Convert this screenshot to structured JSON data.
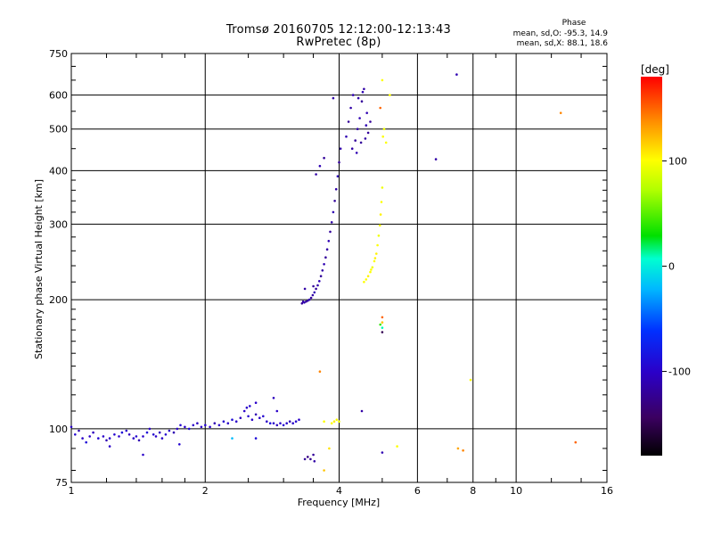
{
  "title_line1": "Tromsø 20160705 12:12:00-12:13:43",
  "title_line2": "RwPretec (8p)",
  "phase_box": {
    "heading": "Phase",
    "line_o": "mean, sd,O: -95.3, 14.9",
    "line_x": "mean, sd,X:  88.1, 18.6"
  },
  "chart_data": {
    "type": "scatter",
    "xlabel": "Frequency [MHz]",
    "ylabel": "Stationary phase Virtual Height [km]",
    "xscale": "log",
    "yscale": "log",
    "xlim": [
      1,
      16
    ],
    "ylim": [
      75,
      750
    ],
    "x_ticks": [
      1,
      2,
      4,
      6,
      8,
      10,
      16
    ],
    "x_tick_labels": [
      "1",
      "2",
      "4",
      "6",
      "8",
      "10",
      "16"
    ],
    "y_ticks": [
      75,
      100,
      200,
      300,
      400,
      500,
      600,
      750
    ],
    "y_tick_labels": [
      "75",
      "100",
      "200",
      "300",
      "400",
      "500",
      "600",
      "750"
    ],
    "grid": true,
    "colorbar": {
      "label": "[deg]",
      "range": [
        -180,
        180
      ],
      "ticks": [
        100,
        0,
        -100
      ],
      "tick_labels": [
        "100",
        "0",
        "-100"
      ]
    },
    "series": [
      {
        "points": [
          [
            1.0,
            101,
            -100
          ],
          [
            1.02,
            97,
            -95
          ],
          [
            1.04,
            99,
            -110
          ],
          [
            1.06,
            95,
            -100
          ],
          [
            1.08,
            93,
            -90
          ],
          [
            1.1,
            96,
            -100
          ],
          [
            1.12,
            98,
            -105
          ],
          [
            1.15,
            95,
            -95
          ],
          [
            1.18,
            96,
            -100
          ],
          [
            1.2,
            94,
            -110
          ],
          [
            1.22,
            95,
            -100
          ],
          [
            1.25,
            97,
            -95
          ],
          [
            1.28,
            96,
            -100
          ],
          [
            1.3,
            98,
            -90
          ],
          [
            1.33,
            99,
            -100
          ],
          [
            1.35,
            97,
            -105
          ],
          [
            1.38,
            95,
            -100
          ],
          [
            1.4,
            96,
            -95
          ],
          [
            1.42,
            94,
            -110
          ],
          [
            1.45,
            96,
            -100
          ],
          [
            1.48,
            98,
            -90
          ],
          [
            1.5,
            100,
            -100
          ],
          [
            1.53,
            97,
            -95
          ],
          [
            1.55,
            96,
            -100
          ],
          [
            1.58,
            98,
            -105
          ],
          [
            1.6,
            95,
            -100
          ],
          [
            1.63,
            97,
            -95
          ],
          [
            1.66,
            99,
            -100
          ],
          [
            1.7,
            98,
            -110
          ],
          [
            1.73,
            100,
            -100
          ],
          [
            1.76,
            102,
            -95
          ],
          [
            1.8,
            101,
            -100
          ],
          [
            1.84,
            100,
            -90
          ],
          [
            1.88,
            102,
            -100
          ],
          [
            1.92,
            103,
            -105
          ],
          [
            1.96,
            101,
            -100
          ],
          [
            2.0,
            102,
            -95
          ],
          [
            2.05,
            101,
            -100
          ],
          [
            2.1,
            103,
            -110
          ],
          [
            2.15,
            102,
            -100
          ],
          [
            2.2,
            104,
            -95
          ],
          [
            2.25,
            103,
            -100
          ],
          [
            2.3,
            105,
            -90
          ],
          [
            2.35,
            104,
            -100
          ],
          [
            2.4,
            106,
            -105
          ],
          [
            2.45,
            110,
            -100
          ],
          [
            2.5,
            107,
            -95
          ],
          [
            2.55,
            105,
            -100
          ],
          [
            2.6,
            108,
            -110
          ],
          [
            2.65,
            106,
            -100
          ],
          [
            2.7,
            107,
            -95
          ],
          [
            2.75,
            104,
            -100
          ],
          [
            2.8,
            103,
            -90
          ],
          [
            2.85,
            103,
            -100
          ],
          [
            2.9,
            102,
            -105
          ],
          [
            2.95,
            103,
            -100
          ],
          [
            3.0,
            102,
            -95
          ],
          [
            3.05,
            103,
            -100
          ],
          [
            3.1,
            104,
            -110
          ],
          [
            3.15,
            103,
            -100
          ],
          [
            3.2,
            104,
            -95
          ],
          [
            3.25,
            105,
            -100
          ],
          [
            1.45,
            87,
            -100
          ],
          [
            1.75,
            92,
            -95
          ],
          [
            1.22,
            91,
            -100
          ],
          [
            2.6,
            115,
            -100
          ],
          [
            2.52,
            113,
            -95
          ],
          [
            2.48,
            112,
            -100
          ],
          [
            2.85,
            118,
            -105
          ],
          [
            2.9,
            110,
            -100
          ],
          [
            2.3,
            95,
            -20
          ],
          [
            2.6,
            95,
            -90
          ],
          [
            3.35,
            85,
            -120
          ],
          [
            3.4,
            86,
            -130
          ],
          [
            3.45,
            85,
            -125
          ],
          [
            3.5,
            87,
            -120
          ],
          [
            3.52,
            84,
            -115
          ],
          [
            3.3,
            196,
            -120
          ],
          [
            3.32,
            198,
            -115
          ],
          [
            3.34,
            197,
            -110
          ],
          [
            3.37,
            198,
            -120
          ],
          [
            3.4,
            199,
            -115
          ],
          [
            3.43,
            200,
            -110
          ],
          [
            3.46,
            202,
            -120
          ],
          [
            3.49,
            205,
            -115
          ],
          [
            3.52,
            208,
            -110
          ],
          [
            3.55,
            212,
            -120
          ],
          [
            3.58,
            216,
            -115
          ],
          [
            3.61,
            221,
            -110
          ],
          [
            3.64,
            227,
            -120
          ],
          [
            3.67,
            234,
            -115
          ],
          [
            3.7,
            242,
            -110
          ],
          [
            3.73,
            251,
            -120
          ],
          [
            3.76,
            262,
            -115
          ],
          [
            3.79,
            274,
            -110
          ],
          [
            3.82,
            288,
            -120
          ],
          [
            3.85,
            303,
            -115
          ],
          [
            3.88,
            320,
            -110
          ],
          [
            3.91,
            340,
            -120
          ],
          [
            3.94,
            362,
            -115
          ],
          [
            3.97,
            388,
            -110
          ],
          [
            4.0,
            418,
            -120
          ],
          [
            4.03,
            450,
            -115
          ],
          [
            3.35,
            212,
            -115
          ],
          [
            3.5,
            215,
            -120
          ],
          [
            3.55,
            392,
            -115
          ],
          [
            3.62,
            410,
            -110
          ],
          [
            3.7,
            428,
            -120
          ],
          [
            3.88,
            590,
            -115
          ],
          [
            4.15,
            480,
            -110
          ],
          [
            4.2,
            520,
            -120
          ],
          [
            4.25,
            560,
            -115
          ],
          [
            4.3,
            600,
            -110
          ],
          [
            4.35,
            470,
            -120
          ],
          [
            4.4,
            500,
            -115
          ],
          [
            4.45,
            530,
            -110
          ],
          [
            4.5,
            580,
            -120
          ],
          [
            4.55,
            620,
            -115
          ],
          [
            4.6,
            510,
            -110
          ],
          [
            4.65,
            490,
            -120
          ],
          [
            4.28,
            450,
            -115
          ],
          [
            4.38,
            440,
            -110
          ],
          [
            4.48,
            465,
            -120
          ],
          [
            4.58,
            475,
            -115
          ],
          [
            4.62,
            545,
            -110
          ],
          [
            4.7,
            520,
            -120
          ],
          [
            4.42,
            590,
            -115
          ],
          [
            4.52,
            610,
            -110
          ],
          [
            6.6,
            425,
            -115
          ],
          [
            7.35,
            670,
            -110
          ],
          [
            4.5,
            110,
            -115
          ],
          [
            5.0,
            88,
            -110
          ],
          [
            4.55,
            220,
            100
          ],
          [
            4.6,
            223,
            100
          ],
          [
            4.65,
            227,
            105
          ],
          [
            4.7,
            232,
            100
          ],
          [
            4.75,
            238,
            95
          ],
          [
            4.8,
            246,
            100
          ],
          [
            4.85,
            256,
            105
          ],
          [
            4.88,
            268,
            100
          ],
          [
            4.91,
            282,
            95
          ],
          [
            4.94,
            298,
            100
          ],
          [
            4.96,
            316,
            105
          ],
          [
            4.98,
            338,
            100
          ],
          [
            5.0,
            365,
            95
          ],
          [
            4.72,
            235,
            100
          ],
          [
            4.82,
            250,
            105
          ],
          [
            5.02,
            480,
            100
          ],
          [
            5.05,
            500,
            95
          ],
          [
            5.1,
            465,
            100
          ],
          [
            5.0,
            650,
            100
          ],
          [
            5.2,
            600,
            100
          ],
          [
            3.85,
            103,
            100
          ],
          [
            3.9,
            104,
            105
          ],
          [
            3.95,
            105,
            100
          ],
          [
            4.0,
            104,
            95
          ],
          [
            3.7,
            104,
            100
          ],
          [
            5.4,
            91,
            100
          ],
          [
            4.95,
            560,
            150
          ],
          [
            5.0,
            182,
            150
          ],
          [
            5.0,
            177,
            120
          ],
          [
            5.0,
            172,
            10
          ],
          [
            4.95,
            175,
            40
          ],
          [
            5.0,
            168,
            -150
          ],
          [
            3.62,
            136,
            140
          ],
          [
            7.9,
            130,
            100
          ],
          [
            3.8,
            90,
            110
          ],
          [
            3.7,
            80,
            120
          ],
          [
            7.4,
            90,
            130
          ],
          [
            7.6,
            89,
            140
          ],
          [
            12.6,
            545,
            140
          ],
          [
            13.6,
            93,
            150
          ]
        ]
      }
    ]
  }
}
